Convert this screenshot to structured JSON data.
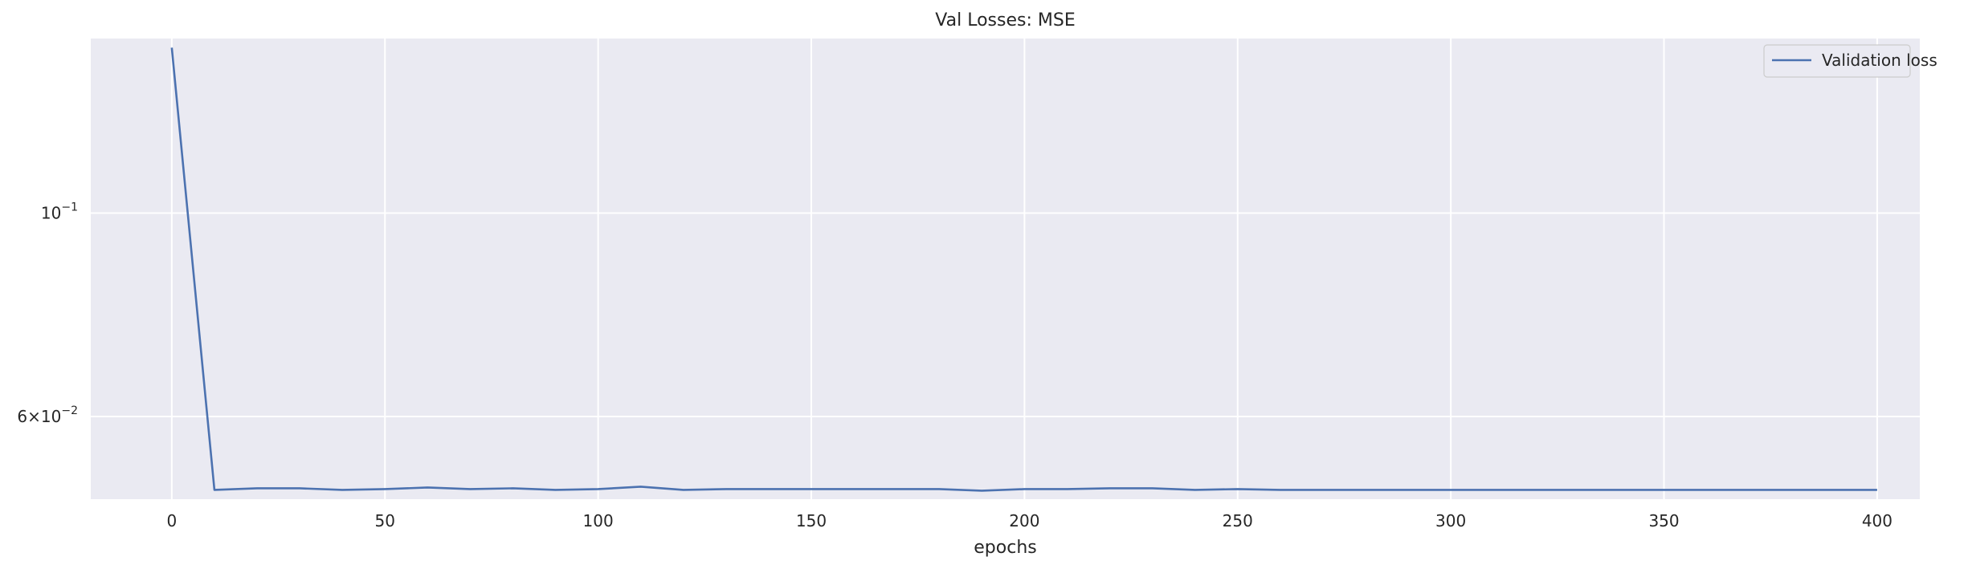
{
  "chart_data": {
    "type": "line",
    "title": "Val Losses:  MSE",
    "xlabel": "epochs",
    "ylabel": "",
    "yscale": "log",
    "xlim": [
      -19,
      410
    ],
    "ylim": [
      0.04875,
      0.155
    ],
    "grid": true,
    "legend_position": "top-right",
    "xticks": [
      0,
      50,
      100,
      150,
      200,
      250,
      300,
      350,
      400
    ],
    "yticks": [
      {
        "value": 0.1,
        "base": "10",
        "exponent": "−1"
      },
      {
        "value": 0.06,
        "mantissa": "6",
        "base": "10",
        "exponent": "−2"
      }
    ],
    "series": [
      {
        "name": "Validation loss",
        "color": "#4c72b0",
        "x": [
          0,
          10,
          20,
          30,
          40,
          50,
          60,
          70,
          80,
          90,
          100,
          110,
          120,
          130,
          140,
          150,
          160,
          170,
          180,
          190,
          200,
          210,
          220,
          230,
          240,
          250,
          260,
          270,
          280,
          290,
          300,
          310,
          320,
          330,
          340,
          350,
          360,
          370,
          380,
          390,
          400
        ],
        "y": [
          0.1515,
          0.0499,
          0.0501,
          0.0501,
          0.0499,
          0.05,
          0.0502,
          0.05,
          0.0501,
          0.0499,
          0.05,
          0.0503,
          0.0499,
          0.05,
          0.05,
          0.05,
          0.05,
          0.05,
          0.05,
          0.0498,
          0.05,
          0.05,
          0.0501,
          0.0501,
          0.0499,
          0.05,
          0.0499,
          0.0499,
          0.0499,
          0.0499,
          0.0499,
          0.0499,
          0.0499,
          0.0499,
          0.0499,
          0.0499,
          0.0499,
          0.0499,
          0.0499,
          0.0499,
          0.0499
        ]
      }
    ]
  }
}
